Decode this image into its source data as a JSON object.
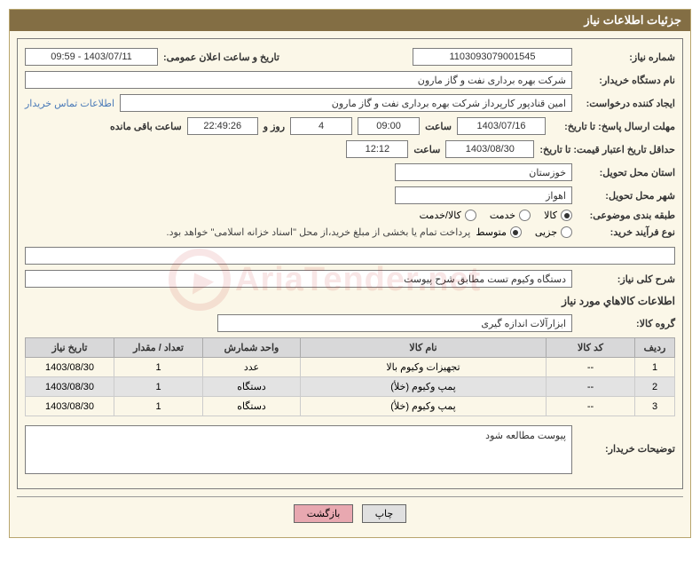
{
  "panel_title": "جزئیات اطلاعات نیاز",
  "fields": {
    "need_number": {
      "label": "شماره نیاز:",
      "value": "1103093079001545"
    },
    "announce_date": {
      "label": "تاریخ و ساعت اعلان عمومی:",
      "value": "1403/07/11 - 09:59"
    },
    "buyer_org": {
      "label": "نام دستگاه خریدار:",
      "value": "شرکت بهره برداری نفت و گاز مارون"
    },
    "requester": {
      "label": "ایجاد کننده درخواست:",
      "value": "امین قنادپور کارپرداز شرکت بهره برداری نفت و گاز مارون"
    },
    "contact_link": "اطلاعات تماس خریدار",
    "reply_deadline": {
      "label": "مهلت ارسال پاسخ: تا تاریخ:",
      "date": "1403/07/16",
      "time_label": "ساعت",
      "time": "09:00"
    },
    "countdown": {
      "days": "4",
      "days_label": "روز و",
      "time": "22:49:26",
      "remain_label": "ساعت باقی مانده"
    },
    "price_validity": {
      "label": "حداقل تاریخ اعتبار قیمت: تا تاریخ:",
      "date": "1403/08/30",
      "time_label": "ساعت",
      "time": "12:12"
    },
    "province": {
      "label": "استان محل تحویل:",
      "value": "خوزستان"
    },
    "city": {
      "label": "شهر محل تحویل:",
      "value": "اهواز"
    },
    "category": {
      "label": "طبقه بندی موضوعی:",
      "opt1": "کالا",
      "opt2": "خدمت",
      "opt3": "کالا/خدمت"
    },
    "purchase_type": {
      "label": "نوع فرآیند خرید:",
      "opt1": "جزیی",
      "opt2": "متوسط",
      "note": "پرداخت تمام یا بخشی از مبلغ خرید،از محل \"اسناد خزانه اسلامی\" خواهد بود."
    },
    "general_desc": {
      "label": "شرح کلی نیاز:",
      "value": "دستگاه وکیوم تست مطابق شرح پیوست"
    },
    "items_title": "اطلاعات کالاهاي مورد نیاز",
    "product_group": {
      "label": "گروه کالا:",
      "value": "ابزارآلات اندازه گیری"
    },
    "buyer_notes": {
      "label": "توضیحات خریدار:",
      "value": "پیوست مطالعه شود"
    }
  },
  "table": {
    "headers": [
      "ردیف",
      "کد کالا",
      "نام کالا",
      "واحد شمارش",
      "تعداد / مقدار",
      "تاریخ نیاز"
    ],
    "rows": [
      [
        "1",
        "--",
        "تجهیزات وکیوم بالا",
        "عدد",
        "1",
        "1403/08/30"
      ],
      [
        "2",
        "--",
        "پمپ وکیوم (خلأ)",
        "دستگاه",
        "1",
        "1403/08/30"
      ],
      [
        "3",
        "--",
        "پمپ وکیوم (خلأ)",
        "دستگاه",
        "1",
        "1403/08/30"
      ]
    ]
  },
  "buttons": {
    "print": "چاپ",
    "back": "بازگشت"
  },
  "watermark": "AriaTender.net",
  "colors": {
    "header_bg": "#836e44",
    "panel_bg": "#fbf7e8",
    "border": "#7c7c7c",
    "link": "#4a7ab8",
    "th_bg": "#d8d8d9",
    "btn_back_bg": "#e8a8b0"
  }
}
